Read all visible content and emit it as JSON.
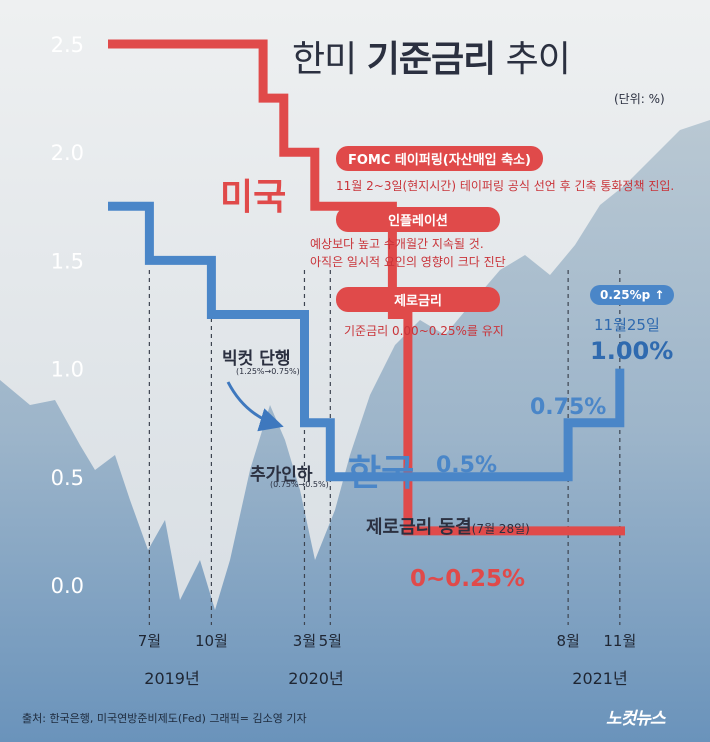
{
  "title_prefix": "한미",
  "title_bold": "기준금리",
  "title_suffix": "추이",
  "unit": "(단위: %)",
  "colors": {
    "us": "#e04a4a",
    "korea": "#4a86c8",
    "background_top": "#e9ecee",
    "background_bottom": "#6f99bf"
  },
  "chart_data": {
    "type": "line",
    "ylim": [
      0,
      2.5
    ],
    "yticks": [
      "2.5",
      "2.0",
      "1.5",
      "1.0",
      "0.5",
      "0.0"
    ],
    "series": [
      {
        "name": "미국",
        "color": "#e04a4a",
        "points": [
          {
            "t": 0,
            "y": 2.5
          },
          {
            "t": 30,
            "y": 2.5
          },
          {
            "t": 30,
            "y": 2.25
          },
          {
            "t": 34,
            "y": 2.25
          },
          {
            "t": 34,
            "y": 2.0
          },
          {
            "t": 40,
            "y": 2.0
          },
          {
            "t": 40,
            "y": 1.75
          },
          {
            "t": 55,
            "y": 1.75
          },
          {
            "t": 55,
            "y": 1.25
          },
          {
            "t": 58,
            "y": 1.25
          },
          {
            "t": 58,
            "y": 0.25
          },
          {
            "t": 100,
            "y": 0.25
          }
        ]
      },
      {
        "name": "한국",
        "color": "#4a86c8",
        "points": [
          {
            "t": 0,
            "y": 1.75
          },
          {
            "t": 8,
            "y": 1.75
          },
          {
            "t": 8,
            "y": 1.5
          },
          {
            "t": 20,
            "y": 1.5
          },
          {
            "t": 20,
            "y": 1.25
          },
          {
            "t": 38,
            "y": 1.25
          },
          {
            "t": 38,
            "y": 0.75
          },
          {
            "t": 43,
            "y": 0.75
          },
          {
            "t": 43,
            "y": 0.5
          },
          {
            "t": 89,
            "y": 0.5
          },
          {
            "t": 89,
            "y": 0.75
          },
          {
            "t": 99,
            "y": 0.75
          },
          {
            "t": 99,
            "y": 1.0
          }
        ]
      }
    ],
    "events": [
      {
        "label": "7월",
        "t": 8
      },
      {
        "label": "10월",
        "t": 20
      },
      {
        "label": "3월",
        "t": 38
      },
      {
        "label": "5월",
        "t": 43
      },
      {
        "label": "8월",
        "t": 89
      },
      {
        "label": "11월",
        "t": 99
      }
    ],
    "years": [
      "2019년",
      "2020년",
      "2021년"
    ]
  },
  "annotations": {
    "us_label": "미국",
    "korea_label": "한국",
    "big_cut": "빅컷 단행",
    "big_cut_detail": "(1.25%→0.75%)",
    "extra_cut": "추가인하",
    "extra_cut_detail": "(0.75%→0.5%)",
    "korea_rate": "0.5%",
    "rate_075": "0.75%",
    "zero_freeze": "제로금리 동결",
    "zero_freeze_date": "(7월 28일)",
    "us_zero": "0~0.25%",
    "hike_pill": "0.25%p ↑",
    "hike_date": "11월25일",
    "hike_rate": "1.00%"
  },
  "notes": [
    {
      "title": "FOMC 테이퍼링(자산매입 축소)",
      "text": [
        "11월 2~3일(현지시간) 테이퍼링 공식 선언 후 긴축 통화정책 진입."
      ]
    },
    {
      "title": "인플레이션",
      "text": [
        "예상보다 높고 수개월간 지속될 것.",
        "아직은 일시적 요인의 영향이 크다 진단"
      ]
    },
    {
      "title": "제로금리",
      "text": [
        "기준금리 0.00~0.25%를 유지"
      ]
    }
  ],
  "source": "출처: 한국은행, 미국연방준비제도(Fed)   그래픽= 김소영 기자",
  "logo": "노컷뉴스"
}
